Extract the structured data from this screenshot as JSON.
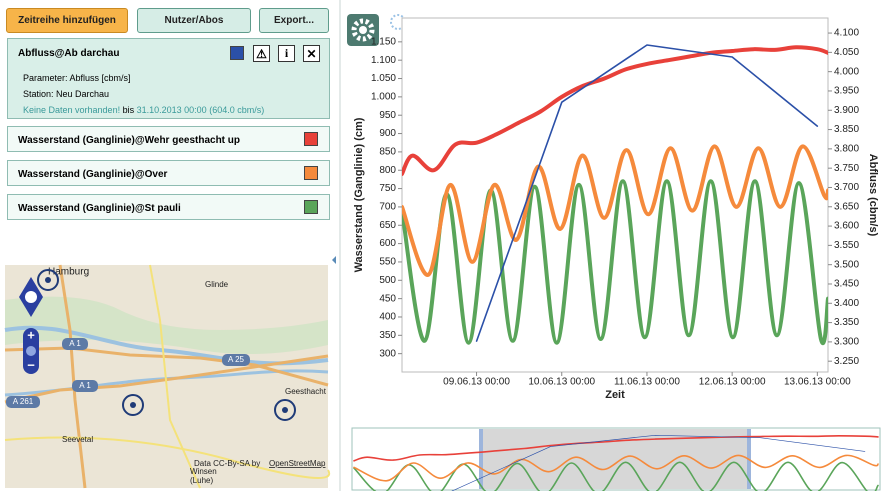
{
  "toolbar": {
    "add": "Zeitreihe hinzufügen",
    "users": "Nutzer/Abos",
    "export": "Export..."
  },
  "details": {
    "parameter": "Parameter: Abfluss [cbm/s]",
    "station": "Station: Neu Darchau",
    "no_data": "Keine Daten vorhanden!",
    "until": "bis",
    "last_value": "31.10.2013 00:00 (604.0 cbm/s)"
  },
  "map": {
    "labels": [
      "Hamburg",
      "Glinde",
      "A 1",
      "A 25",
      "A 1",
      "A 261",
      "Geesthacht",
      "Seevetal",
      "Winsen",
      "(Luhe)"
    ],
    "attribution": "Data CC-By-SA by",
    "attribution_link": "OpenStreetMap"
  },
  "chart_data": {
    "type": "line",
    "xlabel": "Zeit",
    "ylabel": "Wasserstand (Ganglinie) (cm)",
    "y2label": "Abfluss (cbm/s)",
    "xlim": [
      "08.06.13 03:00",
      "13.06.13 03:00"
    ],
    "xticks": [
      "09.06.13 00:00",
      "10.06.13 00:00",
      "11.06.13 00:00",
      "12.06.13 00:00",
      "13.06.13 00:00"
    ],
    "ylim": [
      250,
      1215
    ],
    "yticks": [
      300,
      350,
      400,
      450,
      500,
      550,
      600,
      650,
      700,
      750,
      800,
      850,
      900,
      950,
      {
        "value": 1000,
        "label": "1.000"
      },
      {
        "value": 1050,
        "label": "1.050"
      },
      {
        "value": 1100,
        "label": "1.100"
      },
      {
        "value": 1150,
        "label": "1.150"
      }
    ],
    "y2lim": [
      3222,
      4139
    ],
    "y2ticks": [
      {
        "value": 3250,
        "label": "3.250"
      },
      {
        "value": 3300,
        "label": "3.300"
      },
      {
        "value": 3350,
        "label": "3.350"
      },
      {
        "value": 3400,
        "label": "3.400"
      },
      {
        "value": 3450,
        "label": "3.450"
      },
      {
        "value": 3500,
        "label": "3.500"
      },
      {
        "value": 3550,
        "label": "3.550"
      },
      {
        "value": 3600,
        "label": "3.600"
      },
      {
        "value": 3650,
        "label": "3.650"
      },
      {
        "value": 3700,
        "label": "3.700"
      },
      {
        "value": 3750,
        "label": "3.750"
      },
      {
        "value": 3800,
        "label": "3.800"
      },
      {
        "value": 3850,
        "label": "3.850"
      },
      {
        "value": 3900,
        "label": "3.900"
      },
      {
        "value": 3950,
        "label": "3.950"
      },
      {
        "value": 4000,
        "label": "4.000"
      },
      {
        "value": 4050,
        "label": "4.050"
      },
      {
        "value": 4100,
        "label": "4.100"
      }
    ],
    "grid": false,
    "series": [
      {
        "name": "Abfluss@Ab darchau",
        "color": "#2b50a8",
        "axis": "y2",
        "x": [
          "09.06.13 00:00",
          "10.06.13 00:00",
          "11.06.13 00:00",
          "12.06.13 00:00",
          "13.06.13 00:00"
        ],
        "values": [
          3302,
          3921,
          4069,
          4038,
          3859
        ]
      },
      {
        "name": "Wasserstand (Ganglinie)@Wehr geesthacht up",
        "color": "#e8413a",
        "x": [
          "08.06.13 03:00",
          "08.06.13 06:00",
          "08.06.13 12:00",
          "08.06.13 18:00",
          "09.06.13 00:00",
          "09.06.13 06:00",
          "09.06.13 12:00",
          "09.06.13 18:00",
          "10.06.13 00:00",
          "10.06.13 06:00",
          "10.06.13 12:00",
          "10.06.13 18:00",
          "11.06.13 00:00",
          "11.06.13 06:00",
          "11.06.13 12:00",
          "11.06.13 18:00",
          "12.06.13 00:00",
          "12.06.13 06:00",
          "12.06.13 12:00",
          "12.06.13 18:00",
          "13.06.13 00:00",
          "13.06.13 03:00"
        ],
        "values": [
          790,
          840,
          800,
          870,
          875,
          900,
          930,
          960,
          1000,
          1030,
          1050,
          1075,
          1090,
          1100,
          1110,
          1120,
          1125,
          1130,
          1128,
          1135,
          1130,
          1120
        ]
      },
      {
        "name": "Wasserstand (Ganglinie)@Over",
        "color": "#f58a3c",
        "x": [
          "08.06.13 03:00",
          "08.06.13 10:24",
          "08.06.13 16:36",
          "08.06.13 22:48",
          "09.06.13 05:00",
          "09.06.13 11:12",
          "09.06.13 17:24",
          "09.06.13 23:36",
          "10.06.13 05:48",
          "10.06.13 12:00",
          "10.06.13 18:12",
          "11.06.13 00:24",
          "11.06.13 06:36",
          "11.06.13 12:48",
          "11.06.13 19:00",
          "12.06.13 01:12",
          "12.06.13 07:24",
          "12.06.13 13:36",
          "12.06.13 19:48",
          "13.06.13 02:00",
          "13.06.13 03:00"
        ],
        "values": [
          700,
          515,
          760,
          550,
          760,
          610,
          810,
          640,
          840,
          670,
          855,
          680,
          860,
          690,
          865,
          700,
          860,
          700,
          865,
          730,
          745
        ]
      },
      {
        "name": "Wasserstand (Ganglinie)@St pauli",
        "color": "#5aa55a",
        "x": [
          "08.06.13 03:00",
          "08.06.13 09:24",
          "08.06.13 15:36",
          "08.06.13 21:48",
          "09.06.13 04:00",
          "09.06.13 10:12",
          "09.06.13 16:24",
          "09.06.13 22:36",
          "10.06.13 04:48",
          "10.06.13 11:00",
          "10.06.13 17:12",
          "10.06.13 23:24",
          "11.06.13 05:36",
          "11.06.13 11:48",
          "11.06.13 18:00",
          "12.06.13 00:12",
          "12.06.13 06:24",
          "12.06.13 12:36",
          "12.06.13 18:48",
          "13.06.13 01:00",
          "13.06.13 03:00"
        ],
        "values": [
          690,
          335,
          735,
          330,
          745,
          335,
          755,
          330,
          760,
          340,
          770,
          345,
          770,
          350,
          770,
          345,
          770,
          350,
          765,
          340,
          450
        ]
      }
    ]
  }
}
